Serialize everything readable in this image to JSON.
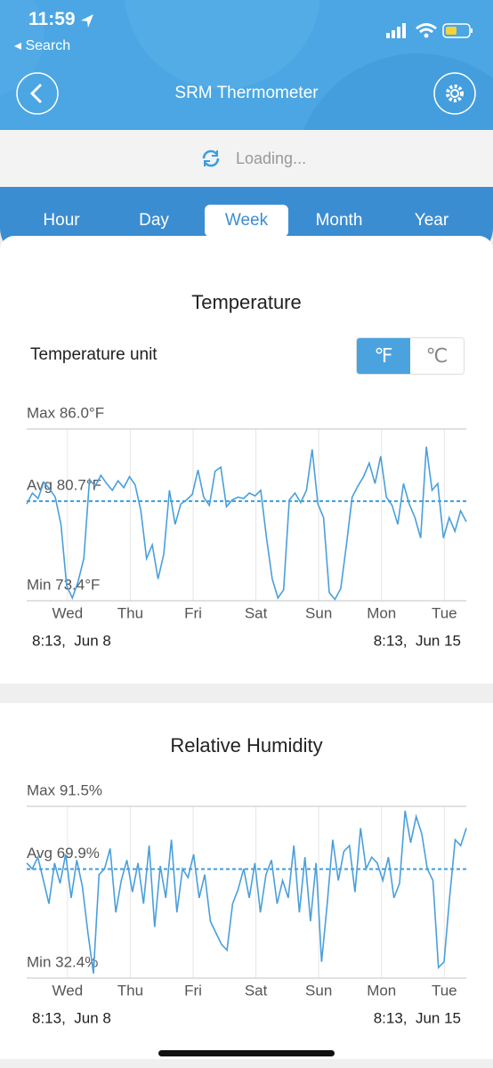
{
  "status_bar": {
    "time": "11:59",
    "back_label": "Search"
  },
  "header": {
    "title": "SRM Thermometer"
  },
  "loading": "Loading...",
  "tabs": {
    "items": [
      "Hour",
      "Day",
      "Week",
      "Month",
      "Year"
    ],
    "selected": 2
  },
  "temperature": {
    "title": "Temperature",
    "unit_label": "Temperature unit",
    "units": [
      "℉",
      "℃"
    ],
    "selected_unit": 0,
    "chart": {
      "type": "line",
      "color": "#4a9fdb",
      "avg_color": "#3a9ee0",
      "ylim": [
        73.4,
        86.0
      ],
      "yticks": [
        {
          "value": 73.4,
          "label": "Min 73.4°F"
        },
        {
          "value": 80.7,
          "label": "Avg 80.7°F"
        },
        {
          "value": 86.0,
          "label": "Max 86.0°F"
        }
      ],
      "categories": [
        "Wed",
        "Thu",
        "Fri",
        "Sat",
        "Sun",
        "Mon",
        "Tue"
      ],
      "start_label": "8:13,  Jun 8",
      "end_label": "8:13,  Jun 15",
      "values": [
        80.5,
        81.3,
        80.9,
        82.1,
        81.6,
        81.0,
        79.0,
        74.5,
        73.6,
        74.8,
        76.5,
        82.3,
        81.8,
        82.6,
        82.0,
        81.5,
        82.2,
        81.7,
        82.5,
        81.9,
        80.0,
        76.5,
        77.5,
        75.0,
        76.8,
        81.5,
        79.0,
        80.5,
        80.8,
        81.2,
        83.0,
        81.0,
        80.4,
        82.9,
        83.2,
        80.3,
        80.8,
        81.0,
        80.9,
        81.3,
        81.1,
        81.5,
        78.0,
        75.0,
        73.6,
        74.2,
        80.8,
        81.3,
        80.6,
        81.5,
        84.5,
        80.5,
        79.5,
        74.0,
        73.5,
        74.3,
        77.5,
        81.0,
        81.8,
        82.5,
        83.5,
        82.0,
        84.0,
        81.0,
        80.4,
        79.0,
        82.0,
        80.5,
        79.5,
        78.0,
        84.7,
        81.5,
        82.0,
        78.0,
        79.5,
        78.5,
        80.0,
        79.2
      ]
    }
  },
  "humidity": {
    "title": "Relative Humidity",
    "chart": {
      "type": "line",
      "color": "#4a9fdb",
      "avg_color": "#3a9ee0",
      "ylim": [
        32.4,
        91.5
      ],
      "yticks": [
        {
          "value": 32.4,
          "label": "Min 32.4%"
        },
        {
          "value": 69.9,
          "label": "Avg 69.9%"
        },
        {
          "value": 91.5,
          "label": "Max 91.5%"
        }
      ],
      "categories": [
        "Wed",
        "Thu",
        "Fri",
        "Sat",
        "Sun",
        "Mon",
        "Tue"
      ],
      "start_label": "8:13,  Jun 8",
      "end_label": "8:13,  Jun 15",
      "values": [
        72,
        70,
        74,
        66,
        58,
        72,
        65,
        75,
        60,
        73,
        64,
        48,
        34,
        68,
        70,
        77,
        55,
        66,
        73,
        62,
        72,
        58,
        78,
        50,
        71,
        60,
        80,
        55,
        70,
        67,
        75,
        60,
        68,
        52,
        48,
        44,
        42,
        58,
        63,
        70,
        60,
        72,
        55,
        68,
        73,
        58,
        66,
        60,
        78,
        55,
        74,
        52,
        72,
        38,
        58,
        80,
        66,
        76,
        78,
        62,
        84,
        70,
        74,
        72,
        66,
        74,
        60,
        65,
        90,
        79,
        88,
        82,
        70,
        66,
        36,
        38,
        60,
        80,
        78,
        84
      ]
    }
  }
}
